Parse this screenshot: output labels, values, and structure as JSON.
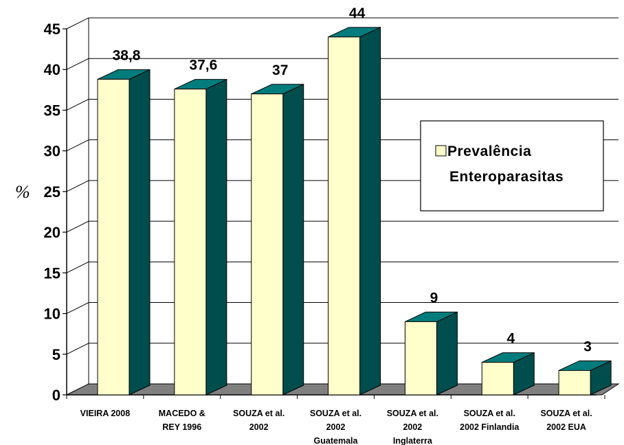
{
  "chart_data": {
    "type": "bar",
    "ylabel": "%",
    "ylim": [
      0,
      45
    ],
    "yticks": [
      0,
      5,
      10,
      15,
      20,
      25,
      30,
      35,
      40,
      45
    ],
    "grid": true,
    "legend_position": "right",
    "categories": [
      [
        "VIEIRA 2008"
      ],
      [
        "MACEDO &",
        "REY 1996"
      ],
      [
        "SOUZA et al.",
        "2002"
      ],
      [
        "SOUZA et al.",
        "2002",
        "Guatemala"
      ],
      [
        "SOUZA et al.",
        "2002",
        "Inglaterra"
      ],
      [
        "SOUZA et al.",
        "2002 Finlandia"
      ],
      [
        "SOUZA et al.",
        "2002 EUA"
      ]
    ],
    "series": [
      {
        "name": [
          "Prevalência",
          "Enteroparasitas"
        ],
        "values": [
          38.8,
          37.6,
          37,
          44,
          9,
          4,
          3
        ],
        "data_labels": [
          "38,8",
          "37,6",
          "37",
          "44",
          "9",
          "4",
          "3"
        ]
      }
    ],
    "colors": {
      "bar_front": "#ffffcc",
      "bar_side": "#004d4d",
      "bar_top": "#007c7c",
      "floor": "#808080",
      "grid": "#000000"
    }
  }
}
